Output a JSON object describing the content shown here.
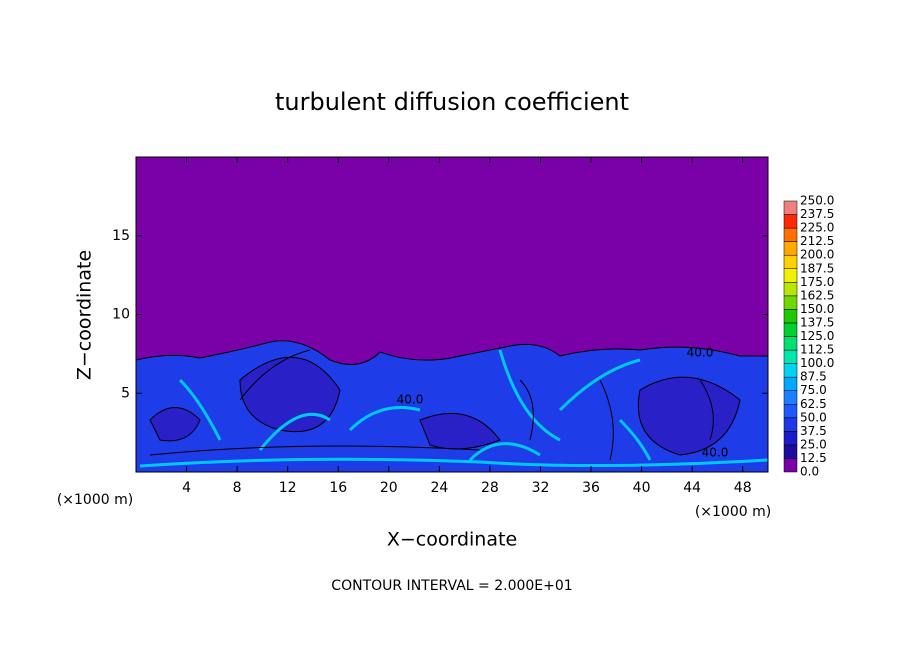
{
  "chart_data": {
    "type": "contour",
    "title": "turbulent diffusion coefficient",
    "x_label": "X−coordinate",
    "y_label": "Z−coordinate",
    "x_unit_left": "(×1000 m)",
    "x_unit_right": "(×1000 m)",
    "footnote": "CONTOUR INTERVAL = 2.000E+01",
    "annotations": [
      "40.0",
      "40.0",
      "40.0"
    ],
    "xlim": [
      0,
      50
    ],
    "ylim": [
      0,
      20
    ],
    "xticks": [
      4,
      8,
      12,
      16,
      20,
      24,
      28,
      32,
      36,
      40,
      44,
      48
    ],
    "yticks": [
      5,
      10,
      15
    ],
    "grid": false,
    "colorbar": {
      "levels": [
        {
          "value": 0,
          "label": "0.0"
        },
        {
          "value": 12.5,
          "label": "12.5"
        },
        {
          "value": 25,
          "label": "25.0"
        },
        {
          "value": 37.5,
          "label": "37.5"
        },
        {
          "value": 50,
          "label": "50.0"
        },
        {
          "value": 62.5,
          "label": "62.5"
        },
        {
          "value": 75,
          "label": "75.0"
        },
        {
          "value": 87.5,
          "label": "87.5"
        },
        {
          "value": 100,
          "label": "100.0"
        },
        {
          "value": 112.5,
          "label": "112.5"
        },
        {
          "value": 125,
          "label": "125.0"
        },
        {
          "value": 137.5,
          "label": "137.5"
        },
        {
          "value": 150,
          "label": "150.0"
        },
        {
          "value": 162.5,
          "label": "162.5"
        },
        {
          "value": 175,
          "label": "175.0"
        },
        {
          "value": 187.5,
          "label": "187.5"
        },
        {
          "value": 200,
          "label": "200.0"
        },
        {
          "value": 212.5,
          "label": "212.5"
        },
        {
          "value": 225,
          "label": "225.0"
        },
        {
          "value": 237.5,
          "label": "237.5"
        },
        {
          "value": 250,
          "label": "250.0"
        }
      ],
      "colors": [
        "#7a00a8",
        "#1c0c9c",
        "#1c1ccc",
        "#1e38e8",
        "#1e58ff",
        "#1a80ff",
        "#00a8ff",
        "#00d4f0",
        "#00e8b0",
        "#00e070",
        "#00d030",
        "#20c800",
        "#70d800",
        "#b8e800",
        "#f0f000",
        "#ffd000",
        "#ffa800",
        "#ff7000",
        "#ff2800",
        "#f08080"
      ]
    }
  }
}
